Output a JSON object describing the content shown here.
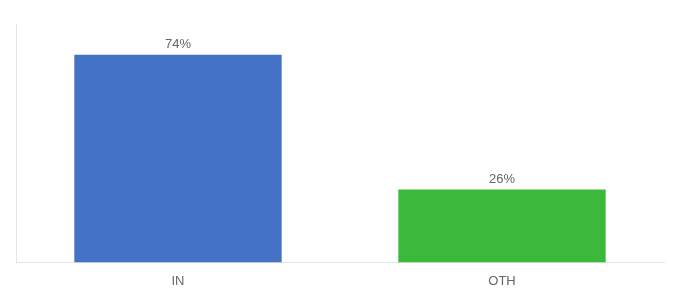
{
  "chart_data": {
    "type": "bar",
    "categories": [
      "IN",
      "OTH"
    ],
    "values": [
      74,
      26
    ],
    "value_labels": [
      "74%",
      "26%"
    ],
    "data_labels": true,
    "colors": [
      "#4472c4",
      "#3cb83c"
    ],
    "ylim": [
      0,
      85
    ],
    "grid": false,
    "tick_labels": "x"
  }
}
